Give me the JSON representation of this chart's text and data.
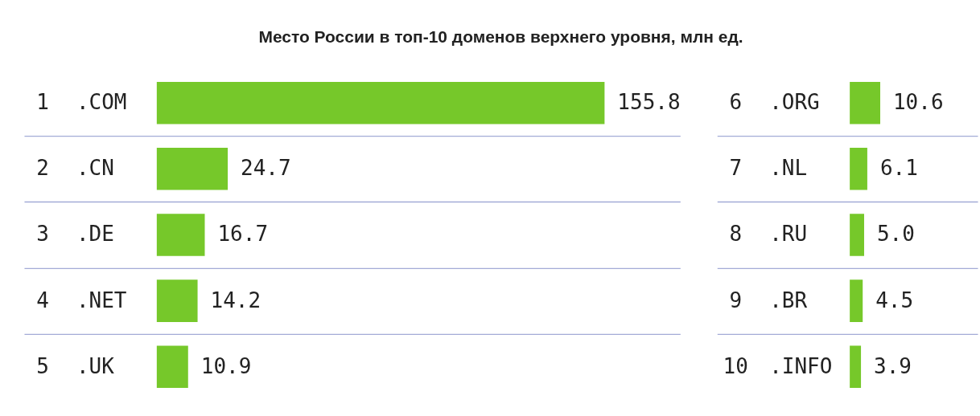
{
  "chart_data": [
    {
      "type": "bar",
      "title": "Место России в топ-10 доменов верхнего уровня, млн ед.",
      "orientation": "horizontal",
      "categories": [
        "1 .COM",
        "2 .CN",
        "3 .DE",
        "4 .NET",
        "5 .UK"
      ],
      "values": [
        155.8,
        24.7,
        16.7,
        14.2,
        10.9
      ],
      "value_labels": [
        "155.8",
        "24.7",
        "16.7",
        "14.2",
        "10.9"
      ],
      "color": "#76c82a",
      "grid": "y"
    },
    {
      "type": "bar",
      "orientation": "horizontal",
      "categories": [
        "6 .ORG",
        "7 .NL",
        "8 .RU",
        "9 .BR",
        "10 .INFO"
      ],
      "values": [
        10.6,
        6.1,
        5.0,
        4.5,
        3.9
      ],
      "value_labels": [
        "10.6",
        "6.1",
        "5.0",
        "4.5",
        "3.9"
      ],
      "color": "#76c82a",
      "grid": "y"
    }
  ]
}
